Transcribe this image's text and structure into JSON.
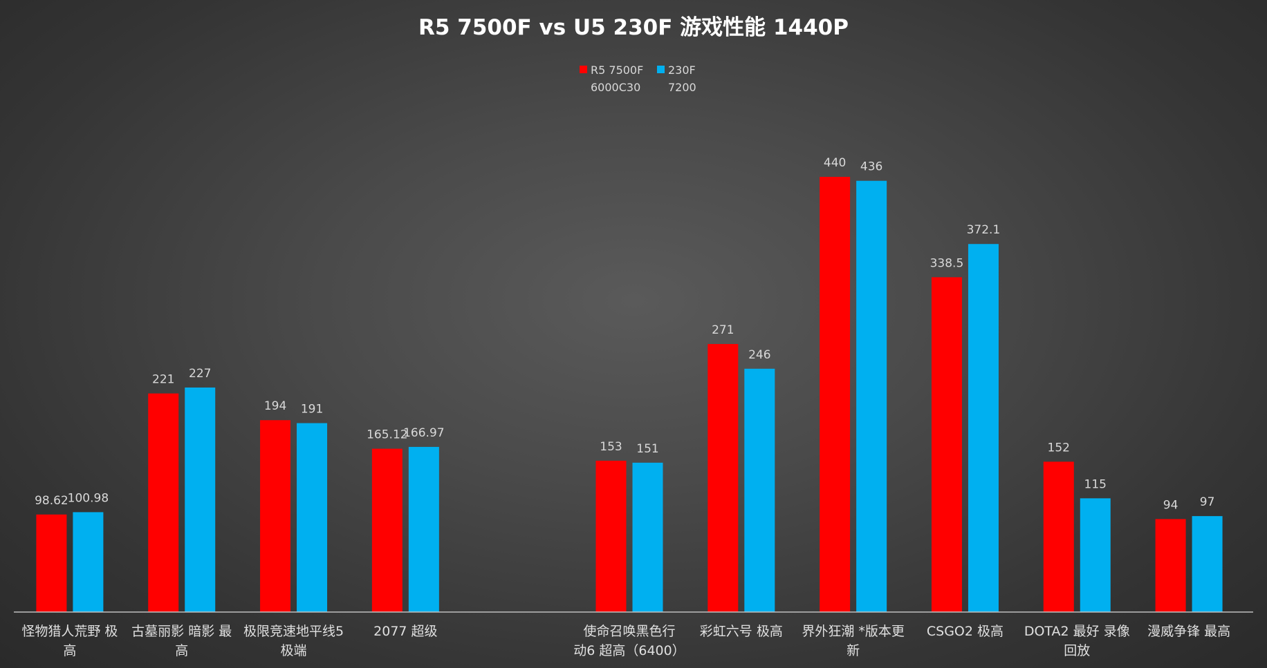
{
  "chart_data": {
    "type": "bar",
    "title": "R5 7500F vs U5 230F 游戏性能 1440P",
    "legend_position": "top-center",
    "grid": false,
    "ylim": [
      0,
      480
    ],
    "colors": {
      "series_1": "#ff0000",
      "series_2": "#00b0f0",
      "axis": "#bfbfbf"
    },
    "categories": [
      [
        "怪物猎人荒野 极",
        "高"
      ],
      [
        "古墓丽影 暗影 最",
        "高"
      ],
      [
        "极限竞速地平线5",
        "极端"
      ],
      [
        "2077 超级"
      ],
      [],
      [
        "使命召唤黑色行",
        "动6 超高（6400）"
      ],
      [
        "彩虹六号 极高"
      ],
      [
        "界外狂潮 *版本更",
        "新"
      ],
      [
        "CSGO2 极高"
      ],
      [
        "DOTA2 最好 录像",
        "回放"
      ],
      [
        "漫威争锋 最高"
      ]
    ],
    "series": [
      {
        "name": [
          "R5 7500F",
          "6000C30"
        ],
        "values": [
          98.62,
          221,
          194,
          165.12,
          null,
          153,
          271,
          440,
          338.5,
          152,
          94
        ],
        "labels": [
          "98.62",
          "221",
          "194",
          "165.12",
          "",
          "153",
          "271",
          "440",
          "338.5",
          "152",
          "94"
        ]
      },
      {
        "name": [
          "230F",
          "7200"
        ],
        "values": [
          100.98,
          227,
          191,
          166.97,
          null,
          151,
          246,
          436,
          372.1,
          115,
          97
        ],
        "labels": [
          "100.98",
          "227",
          "191",
          "166.97",
          "",
          "151",
          "246",
          "436",
          "372.1",
          "115",
          "97"
        ]
      }
    ]
  }
}
